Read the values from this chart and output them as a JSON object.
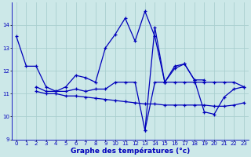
{
  "background_color": "#cce8e8",
  "grid_color": "#aacfcf",
  "line_color": "#0000bb",
  "xlabel": "Graphe des températures (°c)",
  "xlabel_fontsize": 6.5,
  "xlim": [
    -0.5,
    23.5
  ],
  "ylim": [
    9,
    15
  ],
  "yticks": [
    9,
    10,
    11,
    12,
    13,
    14
  ],
  "xticks": [
    0,
    1,
    2,
    3,
    4,
    5,
    6,
    7,
    8,
    9,
    10,
    11,
    12,
    13,
    14,
    15,
    16,
    17,
    18,
    19,
    20,
    21,
    22,
    23
  ],
  "series": [
    {
      "x": [
        0,
        1,
        2,
        3,
        4,
        5,
        6,
        7,
        8,
        9,
        10,
        11,
        12,
        13,
        14,
        15,
        16,
        17,
        18,
        19,
        20,
        21,
        22,
        23
      ],
      "y": [
        13.5,
        12.2,
        12.2,
        11.3,
        11.1,
        11.3,
        11.8,
        11.7,
        11.5,
        13.0,
        13.6,
        14.3,
        13.3,
        14.6,
        13.5,
        11.5,
        12.2,
        12.3,
        11.6,
        11.6,
        null,
        null,
        null,
        null
      ]
    },
    {
      "x": [
        2,
        3,
        4,
        5,
        6,
        7,
        8,
        9,
        10,
        11,
        12,
        13,
        14,
        15,
        16,
        17,
        18,
        19,
        20,
        21,
        22,
        23
      ],
      "y": [
        11.3,
        11.1,
        11.1,
        11.1,
        11.2,
        11.1,
        11.2,
        11.2,
        11.5,
        11.5,
        11.5,
        9.4,
        11.5,
        11.5,
        11.5,
        11.5,
        11.5,
        11.5,
        11.5,
        11.5,
        11.5,
        11.3
      ]
    },
    {
      "x": [
        2,
        3,
        4,
        5,
        6,
        7,
        8,
        9,
        10,
        11,
        12,
        13,
        14,
        15,
        16,
        17,
        18,
        19,
        20,
        21,
        22,
        23
      ],
      "y": [
        11.1,
        11.0,
        11.0,
        10.9,
        10.9,
        10.85,
        10.8,
        10.75,
        10.7,
        10.65,
        10.6,
        10.55,
        10.55,
        10.5,
        10.5,
        10.5,
        10.5,
        10.5,
        10.45,
        10.45,
        10.5,
        10.6
      ]
    },
    {
      "x": [
        13,
        14,
        15,
        16,
        17,
        18,
        19,
        20,
        21,
        22,
        23
      ],
      "y": [
        9.4,
        13.9,
        11.5,
        12.1,
        12.3,
        11.6,
        10.2,
        10.1,
        10.85,
        11.2,
        11.3
      ]
    }
  ]
}
